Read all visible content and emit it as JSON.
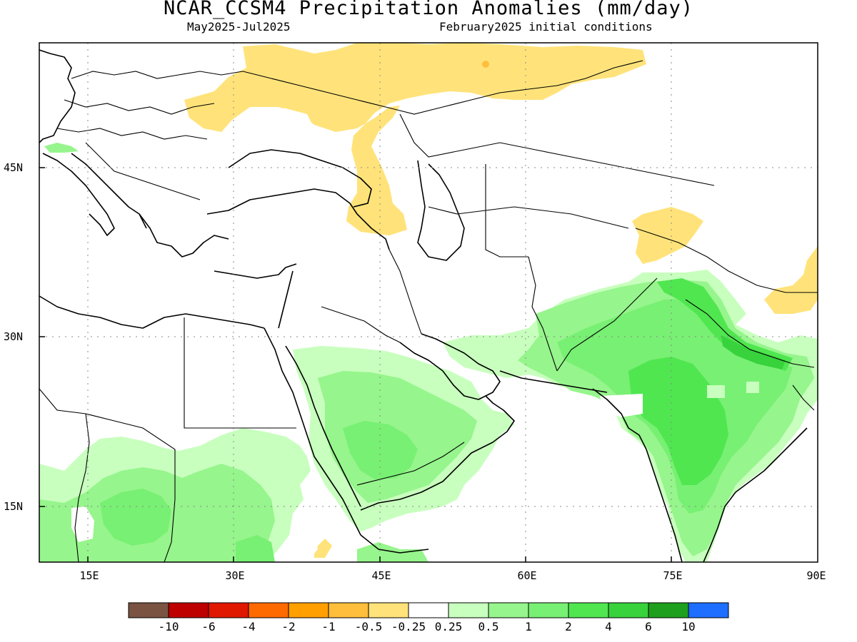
{
  "title": "NCAR_CCSM4 Precipitation Anomalies (mm/day)",
  "subtitle_left": "May2025-Jul2025",
  "subtitle_right": "February2025 initial conditions",
  "map": {
    "lon_range": [
      10,
      90
    ],
    "lat_range": [
      10,
      55
    ],
    "x_ticks": [
      "15E",
      "30E",
      "45E",
      "60E",
      "75E",
      "90E"
    ],
    "y_ticks": [
      "45N",
      "30N",
      "15N"
    ],
    "grid": "dotted"
  },
  "colorbar": {
    "labels": [
      "-10",
      "-6",
      "-4",
      "-2",
      "-1",
      "-0.5",
      "-0.25",
      "0.25",
      "0.5",
      "1",
      "2",
      "4",
      "6",
      "10"
    ],
    "colors": [
      "#7a5343",
      "#be0000",
      "#e01800",
      "#ff6a00",
      "#ff9f00",
      "#ffbe3c",
      "#ffe37a",
      "#ffffff",
      "#c8ffbe",
      "#96f58c",
      "#78f073",
      "#50e650",
      "#37d23c",
      "#1ea01e",
      "#1e6eff"
    ]
  },
  "anomaly_colors": {
    "dry_light": "#ffe37a",
    "dry_mid": "#ffbe3c",
    "wet_0": "#c8ffbe",
    "wet_1": "#96f58c",
    "wet_2": "#78f073",
    "wet_3": "#50e650"
  }
}
